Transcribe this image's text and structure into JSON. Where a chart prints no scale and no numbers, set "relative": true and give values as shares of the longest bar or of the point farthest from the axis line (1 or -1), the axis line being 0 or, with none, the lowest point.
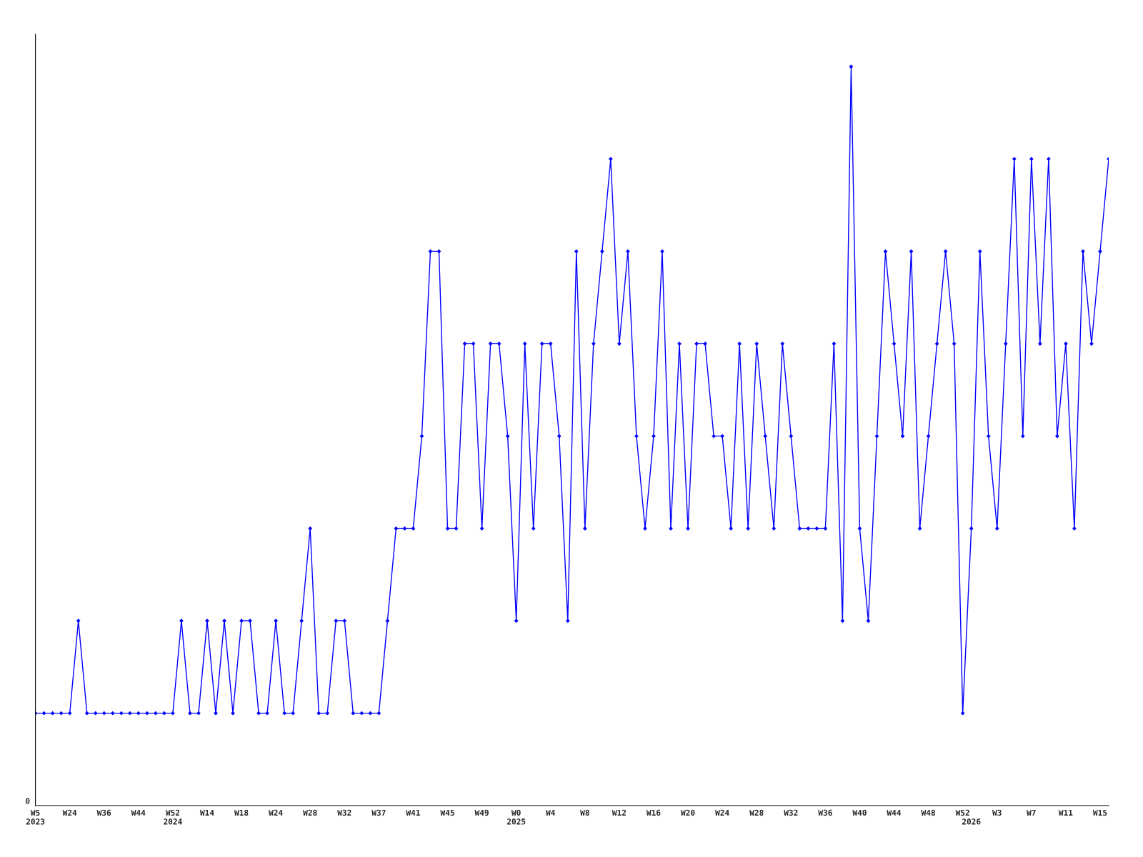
{
  "chart_data": {
    "type": "line",
    "relative": true,
    "marker": "diamond",
    "line_style": "solid",
    "grid": false,
    "legend": false,
    "annotations": [
      "0"
    ],
    "categories": [
      "W5\n2023",
      null,
      null,
      null,
      "W24",
      null,
      null,
      null,
      "W36",
      null,
      null,
      null,
      "W44",
      null,
      null,
      null,
      "W52\n2024",
      null,
      null,
      null,
      "W14",
      null,
      null,
      null,
      "W18",
      null,
      null,
      null,
      "W24",
      null,
      null,
      null,
      "W28",
      null,
      null,
      null,
      "W32",
      null,
      null,
      null,
      "W37",
      null,
      null,
      null,
      "W41",
      null,
      null,
      null,
      "W45",
      null,
      null,
      null,
      "W49",
      null,
      null,
      null,
      "W0\n2025",
      null,
      null,
      null,
      "W4",
      null,
      null,
      null,
      "W8",
      null,
      null,
      null,
      "W12",
      null,
      null,
      null,
      "W16",
      null,
      null,
      null,
      "W20",
      null,
      null,
      null,
      "W24",
      null,
      null,
      null,
      "W28",
      null,
      null,
      null,
      "W32",
      null,
      null,
      null,
      "W36",
      null,
      null,
      null,
      "W40",
      null,
      null,
      null,
      "W44",
      null,
      null,
      null,
      "W48",
      null,
      null,
      null,
      "W52",
      "\n2026",
      null,
      null,
      "W3",
      null,
      null,
      null,
      "W7",
      null,
      null,
      null,
      "W11",
      null,
      null,
      null,
      "W15",
      null
    ],
    "series": [
      {
        "color": "#0000ff",
        "values": [
          0.125,
          0.125,
          0.125,
          0.125,
          0.125,
          0.25,
          0.125,
          0.125,
          0.125,
          0.125,
          0.125,
          0.125,
          0.125,
          0.125,
          0.125,
          0.125,
          0.125,
          0.25,
          0.125,
          0.125,
          0.25,
          0.125,
          0.25,
          0.125,
          0.25,
          0.25,
          0.125,
          0.125,
          0.25,
          0.125,
          0.125,
          0.25,
          0.375,
          0.125,
          0.125,
          0.25,
          0.25,
          0.125,
          0.125,
          0.125,
          0.125,
          0.25,
          0.375,
          0.375,
          0.375,
          0.5,
          0.75,
          0.75,
          0.375,
          0.375,
          0.625,
          0.625,
          0.375,
          0.625,
          0.625,
          0.5,
          0.25,
          0.625,
          0.375,
          0.625,
          0.625,
          0.5,
          0.25,
          0.75,
          0.375,
          0.625,
          0.75,
          0.875,
          0.625,
          0.75,
          0.5,
          0.375,
          0.5,
          0.75,
          0.375,
          0.625,
          0.375,
          0.625,
          0.625,
          0.5,
          0.5,
          0.375,
          0.625,
          0.375,
          0.625,
          0.5,
          0.375,
          0.625,
          0.5,
          0.375,
          0.375,
          0.375,
          0.375,
          0.625,
          0.25,
          1,
          0.375,
          0.25,
          0.5,
          0.75,
          0.625,
          0.5,
          0.75,
          0.375,
          0.5,
          0.625,
          0.75,
          0.625,
          0.125,
          0.375,
          0.75,
          0.5,
          0.375,
          0.625,
          0.875,
          0.5,
          0.875,
          0.625,
          0.875,
          0.5,
          0.625,
          0.375,
          0.75,
          0.625,
          0.75,
          0.875
        ]
      }
    ]
  }
}
